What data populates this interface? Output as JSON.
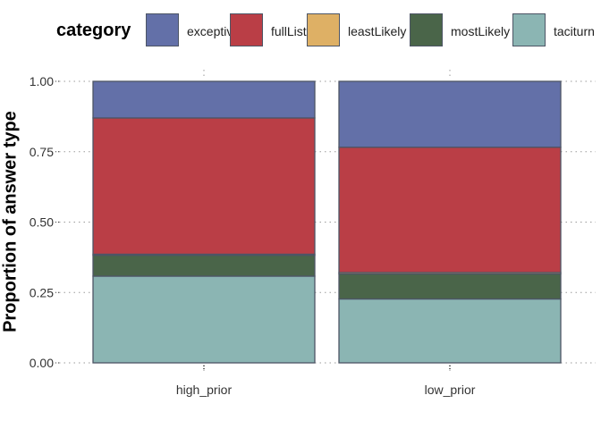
{
  "legend": {
    "title": "category",
    "items": [
      {
        "label": "exceptive",
        "color": "#6370a8"
      },
      {
        "label": "fullList",
        "color": "#ba3e46"
      },
      {
        "label": "leastLikely",
        "color": "#deb065"
      },
      {
        "label": "mostLikely",
        "color": "#4a6549"
      },
      {
        "label": "taciturn",
        "color": "#8bb5b3"
      }
    ]
  },
  "chart_data": {
    "type": "bar",
    "stacked": true,
    "title": "",
    "xlabel": "",
    "ylabel": "Proportion of answer type",
    "ylim": [
      0,
      1
    ],
    "yticks": [
      "0.00",
      "0.25",
      "0.50",
      "0.75",
      "1.00"
    ],
    "grid": "dotted",
    "legend_position": "top",
    "categories": [
      "high_prior",
      "low_prior"
    ],
    "stack_order_bottom_to_top": [
      "taciturn",
      "mostLikely",
      "leastLikely",
      "fullList",
      "exceptive"
    ],
    "series": [
      {
        "name": "exceptive",
        "color": "#6370a8",
        "values": [
          0.13,
          0.234
        ]
      },
      {
        "name": "fullList",
        "color": "#ba3e46",
        "values": [
          0.484,
          0.445
        ]
      },
      {
        "name": "leastLikely",
        "color": "#deb065",
        "values": [
          0.004,
          0.005
        ]
      },
      {
        "name": "mostLikely",
        "color": "#4a6549",
        "values": [
          0.074,
          0.089
        ]
      },
      {
        "name": "taciturn",
        "color": "#8bb5b3",
        "values": [
          0.308,
          0.227
        ]
      }
    ]
  }
}
